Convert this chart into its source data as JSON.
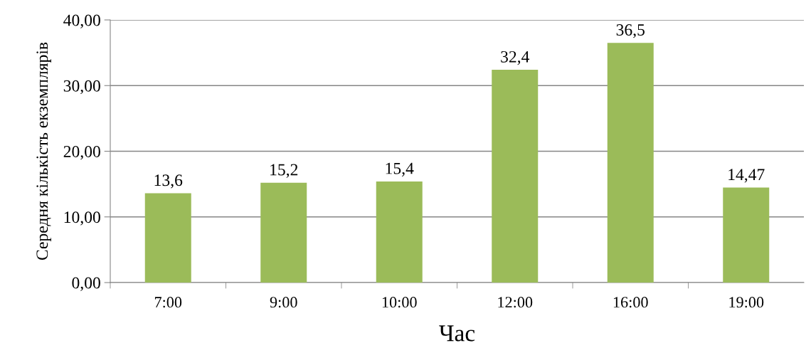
{
  "chart_data": {
    "type": "bar",
    "xlabel": "Час",
    "ylabel": "Середня кількість екземплярів",
    "categories": [
      "7:00",
      "9:00",
      "10:00",
      "12:00",
      "16:00",
      "19:00"
    ],
    "values": [
      13.6,
      15.2,
      15.4,
      32.4,
      36.5,
      14.47
    ],
    "value_labels": [
      "13,6",
      "15,2",
      "15,4",
      "32,4",
      "36,5",
      "14,47"
    ],
    "color": "#9bbb59",
    "ylim": [
      0,
      40
    ],
    "yticks": [
      {
        "value": 0,
        "label": "0,00"
      },
      {
        "value": 10,
        "label": "10,00"
      },
      {
        "value": 20,
        "label": "20,00"
      },
      {
        "value": 30,
        "label": "30,00"
      },
      {
        "value": 40,
        "label": "40,00"
      }
    ],
    "grid": "y"
  }
}
